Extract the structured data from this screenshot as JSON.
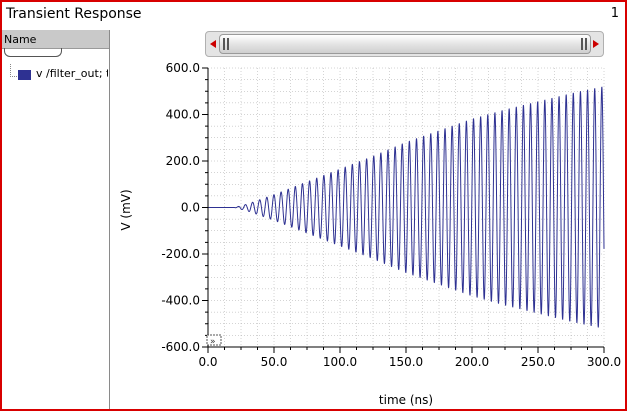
{
  "window": {
    "title": "Transient Response",
    "page_number": "1"
  },
  "left_panel": {
    "header": "Name",
    "signal_label": "v /filter_out; t",
    "signal_color": "#2e3192"
  },
  "colors": {
    "window_border": "#d80000",
    "trace": "#2e3192",
    "scroll_arrow": "#cc0000",
    "grid": "#a8a8a8"
  },
  "chart_data": {
    "type": "line",
    "xlabel": "time (ns)",
    "ylabel": "V (mV)",
    "xlim": [
      0,
      300
    ],
    "ylim": [
      -600,
      600
    ],
    "x_ticks": [
      "0.0",
      "50.0",
      "100.0",
      "150.0",
      "200.0",
      "250.0",
      "300.0"
    ],
    "y_ticks": [
      "600.0",
      "400.0",
      "200.0",
      "0.0",
      "-200.0",
      "-400.0",
      "-600.0"
    ],
    "grid": true,
    "series": [
      {
        "name": "v /filter_out; t",
        "description_points": {
          "time_ns": [
            0,
            20,
            30,
            50,
            75,
            100,
            125,
            150,
            175,
            200,
            225,
            250,
            275,
            300
          ],
          "envelope_mv": [
            0,
            0,
            15,
            55,
            110,
            165,
            220,
            280,
            330,
            380,
            420,
            455,
            490,
            520
          ]
        },
        "period_ns": 5.4
      }
    ]
  }
}
